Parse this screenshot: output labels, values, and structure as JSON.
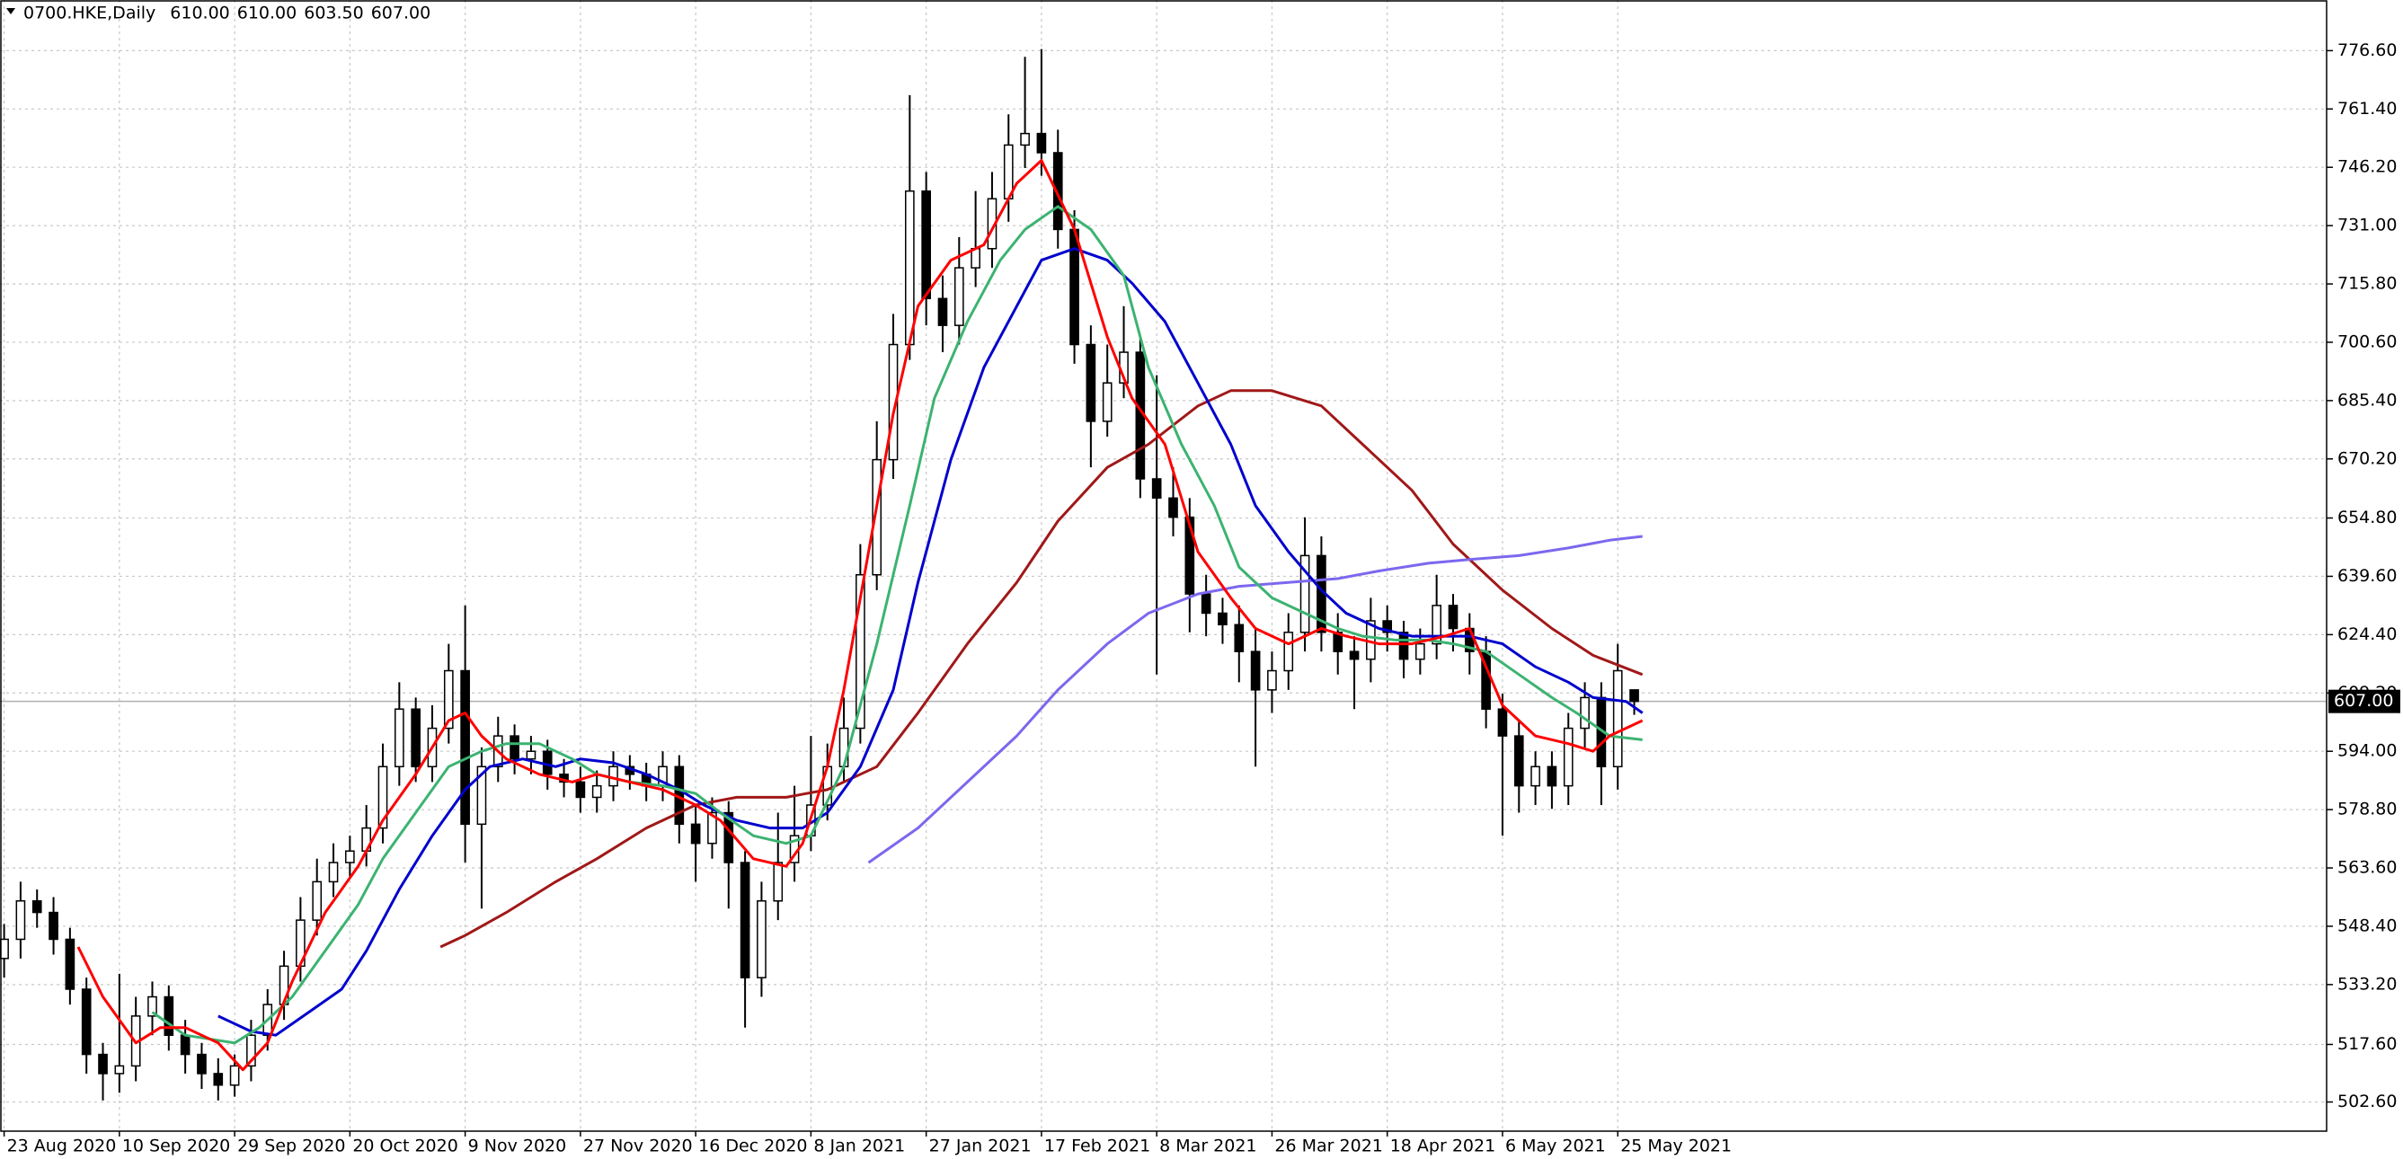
{
  "chart_data": {
    "type": "candlestick",
    "title": "0700.HKE,Daily",
    "header_values": [
      "610.00",
      "610.00",
      "603.50",
      "607.00"
    ],
    "x": [
      0,
      2,
      4,
      6,
      8,
      10,
      12,
      14,
      16,
      18,
      20,
      22,
      24,
      26,
      28,
      30,
      32,
      34,
      36,
      38,
      40,
      42,
      44,
      46,
      48,
      50,
      52,
      54,
      56,
      58,
      60,
      62,
      64,
      66,
      68,
      70,
      72,
      74,
      76,
      78,
      80,
      82,
      84,
      86,
      88,
      90,
      92,
      94,
      96,
      98,
      100,
      102,
      104,
      106,
      108,
      110,
      112,
      114,
      116,
      118,
      120,
      122,
      124,
      126,
      128,
      130,
      132,
      134,
      136,
      138,
      140,
      142,
      144,
      146,
      148,
      150,
      152,
      154,
      156,
      158,
      160,
      162,
      164,
      166,
      168,
      170,
      172,
      174,
      176,
      178,
      180,
      182,
      184,
      186,
      188,
      190,
      192,
      194,
      196,
      198
    ],
    "open": [
      540,
      545,
      555,
      552,
      545,
      532,
      515,
      510,
      512,
      525,
      530,
      520,
      515,
      510,
      507,
      512,
      520,
      528,
      538,
      550,
      560,
      565,
      568,
      574,
      590,
      605,
      590,
      600,
      615,
      575,
      590,
      598,
      592,
      594,
      588,
      586,
      582,
      585,
      590,
      588,
      585,
      590,
      575,
      570,
      578,
      565,
      535,
      555,
      565,
      572,
      580,
      590,
      600,
      640,
      670,
      700,
      740,
      712,
      705,
      720,
      725,
      738,
      752,
      755,
      750,
      730,
      700,
      680,
      690,
      698,
      665,
      660,
      655,
      635,
      630,
      627,
      620,
      610,
      615,
      625,
      645,
      625,
      620,
      618,
      628,
      625,
      618,
      622,
      632,
      626,
      620,
      605,
      598,
      585,
      590,
      585,
      600,
      608,
      590,
      610
    ],
    "high": [
      549,
      560,
      558,
      556,
      548,
      535,
      518,
      536,
      530,
      534,
      533,
      524,
      518,
      514,
      515,
      524,
      532,
      542,
      556,
      566,
      570,
      572,
      580,
      596,
      612,
      608,
      606,
      622,
      632,
      595,
      603,
      601,
      598,
      597,
      592,
      590,
      589,
      594,
      593,
      591,
      594,
      593,
      580,
      582,
      581,
      568,
      560,
      578,
      585,
      598,
      596,
      608,
      648,
      680,
      708,
      765,
      745,
      718,
      728,
      740,
      745,
      760,
      775,
      777,
      756,
      735,
      705,
      700,
      710,
      702,
      692,
      668,
      660,
      640,
      634,
      632,
      626,
      620,
      630,
      655,
      650,
      630,
      624,
      634,
      632,
      628,
      626,
      640,
      635,
      630,
      624,
      609,
      602,
      594,
      594,
      604,
      612,
      612,
      622,
      610
    ],
    "low": [
      535,
      540,
      548,
      541,
      528,
      510,
      503,
      505,
      508,
      520,
      516,
      510,
      506,
      503,
      504,
      508,
      516,
      524,
      534,
      546,
      556,
      561,
      564,
      570,
      585,
      586,
      586,
      596,
      565,
      553,
      586,
      588,
      588,
      584,
      582,
      578,
      578,
      581,
      584,
      581,
      581,
      570,
      560,
      566,
      553,
      522,
      530,
      550,
      560,
      568,
      576,
      586,
      596,
      636,
      665,
      696,
      705,
      698,
      700,
      715,
      720,
      732,
      746,
      744,
      725,
      695,
      668,
      676,
      686,
      660,
      614,
      650,
      625,
      624,
      622,
      612,
      590,
      604,
      610,
      620,
      620,
      614,
      605,
      612,
      620,
      613,
      614,
      618,
      620,
      614,
      600,
      572,
      578,
      580,
      579,
      580,
      595,
      580,
      584,
      603.5
    ],
    "close": [
      545,
      555,
      552,
      545,
      532,
      515,
      510,
      512,
      525,
      530,
      520,
      515,
      510,
      507,
      512,
      520,
      528,
      538,
      550,
      560,
      565,
      568,
      574,
      590,
      605,
      590,
      600,
      615,
      575,
      590,
      598,
      592,
      594,
      588,
      586,
      582,
      585,
      590,
      588,
      585,
      590,
      575,
      570,
      578,
      565,
      535,
      555,
      565,
      572,
      580,
      590,
      600,
      640,
      670,
      700,
      740,
      712,
      705,
      720,
      725,
      738,
      752,
      755,
      750,
      730,
      700,
      680,
      690,
      698,
      665,
      660,
      655,
      635,
      630,
      627,
      620,
      610,
      615,
      625,
      645,
      625,
      620,
      618,
      628,
      625,
      618,
      622,
      632,
      626,
      620,
      605,
      598,
      585,
      590,
      585,
      600,
      608,
      590,
      615,
      607
    ],
    "up_color": "#ffffff",
    "down_color": "#000000",
    "outline_color": "#000000",
    "series": [
      {
        "color": "#a01818",
        "x": [
          53,
          56,
          61,
          67,
          72,
          78,
          84,
          89,
          95,
          100,
          106,
          111,
          117,
          123,
          128,
          134,
          139,
          145,
          149,
          154,
          160,
          165,
          171,
          176,
          182,
          188,
          193,
          199
        ],
        "values": [
          543,
          546,
          552,
          560,
          566,
          574,
          580,
          582,
          582,
          584,
          590,
          604,
          622,
          638,
          654,
          668,
          674,
          684,
          688,
          688,
          684,
          674,
          662,
          648,
          636,
          626,
          619,
          614
        ]
      },
      {
        "color": "#7b68ee",
        "x": [
          105,
          111,
          117,
          123,
          128,
          134,
          139,
          145,
          150,
          156,
          162,
          167,
          173,
          178,
          184,
          190,
          195,
          199
        ],
        "values": [
          565,
          574,
          586,
          598,
          610,
          622,
          630,
          635,
          637,
          638,
          639,
          641,
          643,
          644,
          645,
          647,
          649,
          650
        ]
      },
      {
        "color": "#0000cd",
        "x": [
          26,
          30,
          33,
          37,
          41,
          44,
          48,
          52,
          56,
          59,
          63,
          67,
          70,
          74,
          78,
          82,
          85,
          89,
          93,
          97,
          100,
          104,
          108,
          111,
          115,
          119,
          123,
          126,
          130,
          134,
          137,
          141,
          145,
          149,
          152,
          156,
          160,
          163,
          167,
          171,
          175,
          178,
          182,
          186,
          190,
          193,
          197,
          199
        ],
        "values": [
          525,
          521,
          520,
          526,
          532,
          542,
          558,
          572,
          584,
          590,
          592,
          590,
          592,
          591,
          588,
          584,
          580,
          576,
          574,
          574,
          578,
          590,
          610,
          638,
          670,
          694,
          710,
          722,
          725,
          722,
          716,
          706,
          690,
          674,
          658,
          646,
          636,
          630,
          626,
          624,
          624,
          624,
          622,
          616,
          612,
          608,
          607,
          604
        ]
      },
      {
        "color": "#3cb371",
        "x": [
          18,
          22,
          28,
          31,
          35,
          39,
          43,
          46,
          50,
          54,
          58,
          61,
          65,
          69,
          72,
          76,
          80,
          84,
          87,
          91,
          95,
          98,
          102,
          106,
          110,
          113,
          117,
          121,
          124,
          128,
          132,
          136,
          139,
          143,
          147,
          150,
          154,
          158,
          162,
          165,
          169,
          173,
          176,
          180,
          184,
          188,
          191,
          195,
          199
        ],
        "values": [
          526,
          520,
          518,
          522,
          530,
          542,
          554,
          566,
          578,
          590,
          594,
          596,
          596,
          592,
          588,
          586,
          585,
          583,
          578,
          572,
          570,
          572,
          590,
          622,
          658,
          686,
          706,
          722,
          730,
          736,
          730,
          718,
          694,
          674,
          658,
          642,
          634,
          630,
          626,
          624,
          623,
          623,
          622,
          620,
          614,
          608,
          604,
          598,
          597
        ]
      },
      {
        "color": "#ff0000",
        "x": [
          9,
          12,
          16,
          19,
          22,
          26,
          29,
          32,
          35,
          39,
          43,
          46,
          50,
          54,
          56,
          58,
          61,
          65,
          69,
          72,
          76,
          80,
          84,
          87,
          91,
          95,
          97,
          100,
          102,
          104,
          106,
          108,
          111,
          115,
          119,
          123,
          126,
          130,
          134,
          137,
          141,
          145,
          149,
          152,
          156,
          160,
          163,
          167,
          171,
          175,
          178,
          182,
          186,
          190,
          193,
          195,
          199
        ],
        "values": [
          543,
          530,
          518,
          522,
          522,
          518,
          511,
          518,
          534,
          552,
          564,
          576,
          588,
          602,
          604,
          598,
          592,
          588,
          586,
          588,
          586,
          584,
          580,
          576,
          566,
          564,
          570,
          590,
          610,
          634,
          658,
          682,
          710,
          722,
          726,
          742,
          748,
          730,
          702,
          686,
          674,
          646,
          634,
          626,
          622,
          626,
          624,
          622,
          622,
          624,
          626,
          606,
          598,
          596,
          594,
          598,
          602
        ]
      }
    ],
    "xlim": [
      -0.5,
      282.1
    ],
    "xticks": [
      {
        "value": 0,
        "label": "23 Aug 2020"
      },
      {
        "value": 14,
        "label": "10 Sep 2020"
      },
      {
        "value": 28,
        "label": "29 Sep 2020"
      },
      {
        "value": 42,
        "label": "20 Oct 2020"
      },
      {
        "value": 56,
        "label": "9 Nov 2020"
      },
      {
        "value": 70,
        "label": "27 Nov 2020"
      },
      {
        "value": 84,
        "label": "16 Dec 2020"
      },
      {
        "value": 98,
        "label": "8 Jan 2021"
      },
      {
        "value": 112,
        "label": "27 Jan 2021"
      },
      {
        "value": 126,
        "label": "17 Feb 2021"
      },
      {
        "value": 140,
        "label": "8 Mar 2021"
      },
      {
        "value": 154,
        "label": "26 Mar 2021"
      },
      {
        "value": 168,
        "label": "18 Apr 2021"
      },
      {
        "value": 182,
        "label": "6 May 2021"
      },
      {
        "value": 196,
        "label": "25 May 2021"
      }
    ],
    "ylim": [
      495.0,
      789.8
    ],
    "yticks": [
      {
        "value": 502.6,
        "label": "502.60"
      },
      {
        "value": 517.6,
        "label": "517.60"
      },
      {
        "value": 533.2,
        "label": "533.20"
      },
      {
        "value": 548.4,
        "label": "548.40"
      },
      {
        "value": 563.6,
        "label": "563.60"
      },
      {
        "value": 578.8,
        "label": "578.80"
      },
      {
        "value": 594,
        "label": "594.00"
      },
      {
        "value": 609.2,
        "label": "609.20"
      },
      {
        "value": 624.4,
        "label": "624.40"
      },
      {
        "value": 639.6,
        "label": "639.60"
      },
      {
        "value": 654.8,
        "label": "654.80"
      },
      {
        "value": 670.2,
        "label": "670.20"
      },
      {
        "value": 685.4,
        "label": "685.40"
      },
      {
        "value": 700.6,
        "label": "700.60"
      },
      {
        "value": 715.8,
        "label": "715.80"
      },
      {
        "value": 731,
        "label": "731.00"
      },
      {
        "value": 746.2,
        "label": "746.20"
      },
      {
        "value": 761.4,
        "label": "761.40"
      },
      {
        "value": 776.6,
        "label": "776.60"
      }
    ],
    "grid": true,
    "last_price": {
      "value": 607,
      "label": "607.00"
    }
  }
}
